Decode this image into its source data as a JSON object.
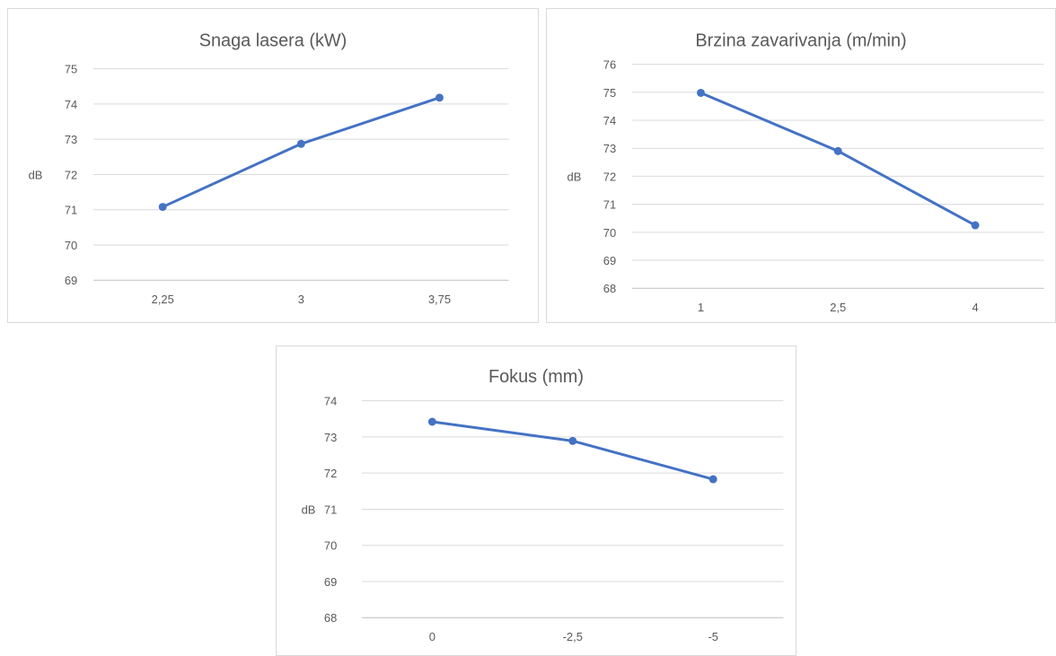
{
  "chart_data": [
    {
      "type": "line",
      "title": "Snaga lasera (kW)",
      "xlabel": "",
      "ylabel": "dB",
      "categories": [
        "2,25",
        "3",
        "3,75"
      ],
      "series": [
        {
          "values": [
            71.08,
            72.87,
            74.18
          ]
        }
      ],
      "ylim": [
        69,
        75
      ],
      "yticks": [
        69,
        70,
        71,
        72,
        73,
        74,
        75
      ],
      "grid": true,
      "color": "#4472c4"
    },
    {
      "type": "line",
      "title": "Brzina zavarivanja (m/min)",
      "xlabel": "",
      "ylabel": "dB",
      "categories": [
        "1",
        "2,5",
        "4"
      ],
      "series": [
        {
          "values": [
            74.98,
            72.9,
            70.25
          ]
        }
      ],
      "ylim": [
        68,
        76
      ],
      "yticks": [
        68,
        69,
        70,
        71,
        72,
        73,
        74,
        75,
        76
      ],
      "grid": true,
      "color": "#4472c4"
    },
    {
      "type": "line",
      "title": "Fokus (mm)",
      "xlabel": "",
      "ylabel": "dB",
      "categories": [
        "0",
        "-2,5",
        "-5"
      ],
      "series": [
        {
          "values": [
            73.42,
            72.89,
            71.83
          ]
        }
      ],
      "ylim": [
        68,
        74
      ],
      "yticks": [
        68,
        69,
        70,
        71,
        72,
        73,
        74
      ],
      "grid": true,
      "color": "#4472c4"
    }
  ]
}
